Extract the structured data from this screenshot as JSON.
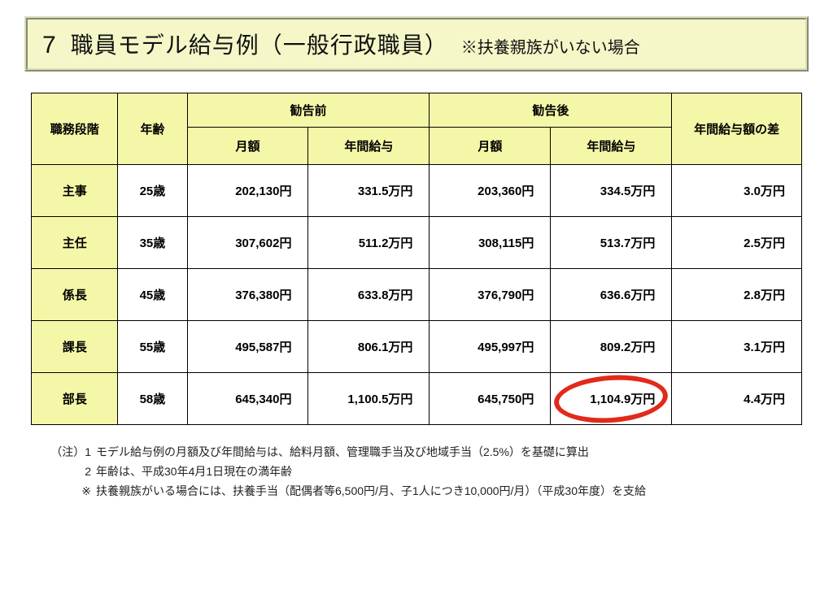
{
  "title": {
    "number": "7",
    "main": "職員モデル給与例（一般行政職員）",
    "note": "※扶養親族がいない場合"
  },
  "headers": {
    "rank": "職務段階",
    "age": "年齢",
    "before": "勧告前",
    "after": "勧告後",
    "monthly": "月額",
    "annual": "年間給与",
    "diff": "年間給与額の差"
  },
  "rows": [
    {
      "rank": "主事",
      "age": "25歳",
      "before_m": "202,130円",
      "before_y": "331.5万円",
      "after_m": "203,360円",
      "after_y": "334.5万円",
      "diff": "3.0万円"
    },
    {
      "rank": "主任",
      "age": "35歳",
      "before_m": "307,602円",
      "before_y": "511.2万円",
      "after_m": "308,115円",
      "after_y": "513.7万円",
      "diff": "2.5万円"
    },
    {
      "rank": "係長",
      "age": "45歳",
      "before_m": "376,380円",
      "before_y": "633.8万円",
      "after_m": "376,790円",
      "after_y": "636.6万円",
      "diff": "2.8万円"
    },
    {
      "rank": "課長",
      "age": "55歳",
      "before_m": "495,587円",
      "before_y": "806.1万円",
      "after_m": "495,997円",
      "after_y": "809.2万円",
      "diff": "3.1万円"
    },
    {
      "rank": "部長",
      "age": "58歳",
      "before_m": "645,340円",
      "before_y": "1,100.5万円",
      "after_m": "645,750円",
      "after_y": "1,104.9万円",
      "diff": "4.4万円"
    }
  ],
  "annotation": {
    "circle_color": "#e22a1a",
    "target_row": 4,
    "target_col": "after_y"
  },
  "notes": {
    "prefix": "（注）",
    "items": [
      {
        "n": "1",
        "text": "モデル給与例の月額及び年間給与は、給料月額、管理職手当及び地域手当（2.5%）を基礎に算出"
      },
      {
        "n": "2",
        "text": "年齢は、平成30年4月1日現在の満年齢"
      },
      {
        "n": "※",
        "text": "扶養親族がいる場合には、扶養手当（配偶者等6,500円/月、子1人につき10,000円/月）（平成30年度）を支給"
      }
    ]
  },
  "style": {
    "header_bg": "#f5f7a8",
    "title_bg": "#f5f7c8",
    "border_color": "#000000",
    "circle_color": "#e22a1a"
  }
}
